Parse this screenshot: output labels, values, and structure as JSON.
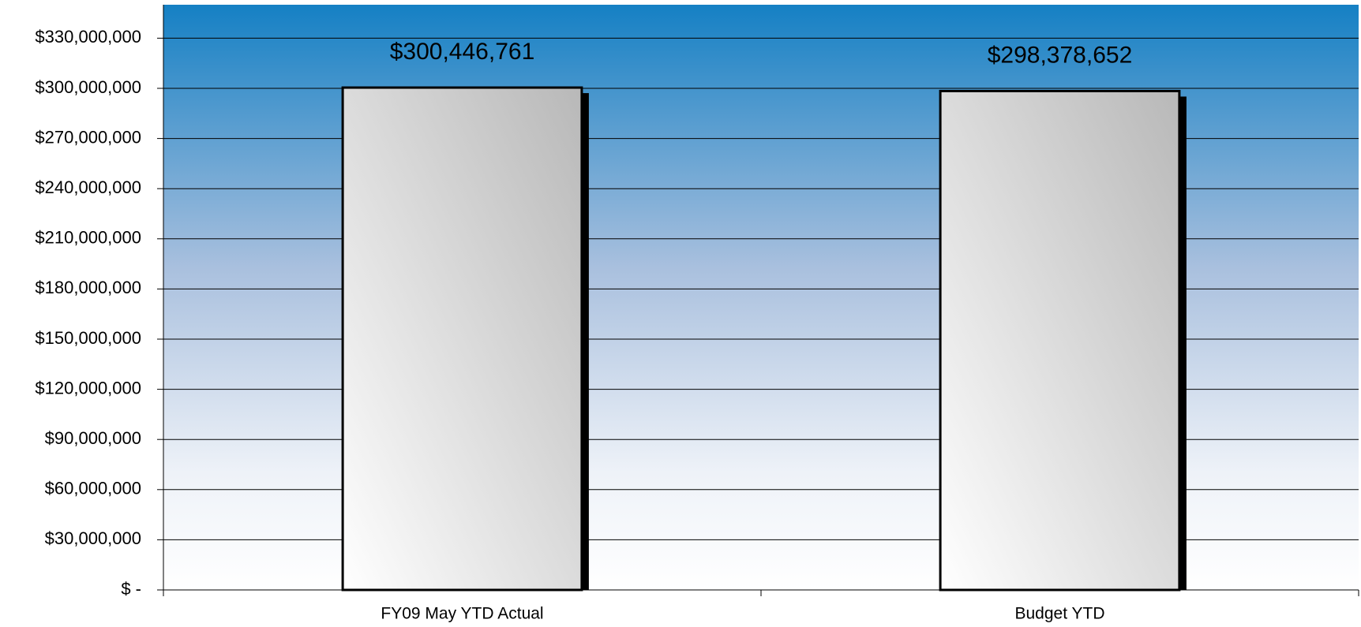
{
  "chart_data": {
    "type": "bar",
    "categories": [
      "FY09 May YTD Actual",
      "Budget YTD"
    ],
    "values": [
      300446761,
      298378652
    ],
    "value_labels": [
      "$300,446,761",
      "$298,378,652"
    ],
    "color": "#d0d0d0",
    "ylim": [
      0,
      350000000
    ],
    "yticks": [
      {
        "value": 0,
        "label": "$ -"
      },
      {
        "value": 30000000,
        "label": "$30,000,000"
      },
      {
        "value": 60000000,
        "label": "$60,000,000"
      },
      {
        "value": 90000000,
        "label": "$90,000,000"
      },
      {
        "value": 120000000,
        "label": "$120,000,000"
      },
      {
        "value": 150000000,
        "label": "$150,000,000"
      },
      {
        "value": 180000000,
        "label": "$180,000,000"
      },
      {
        "value": 210000000,
        "label": "$210,000,000"
      },
      {
        "value": 240000000,
        "label": "$240,000,000"
      },
      {
        "value": 270000000,
        "label": "$270,000,000"
      },
      {
        "value": 300000000,
        "label": "$300,000,000"
      },
      {
        "value": 330000000,
        "label": "$330,000,000"
      }
    ],
    "grid": true
  }
}
